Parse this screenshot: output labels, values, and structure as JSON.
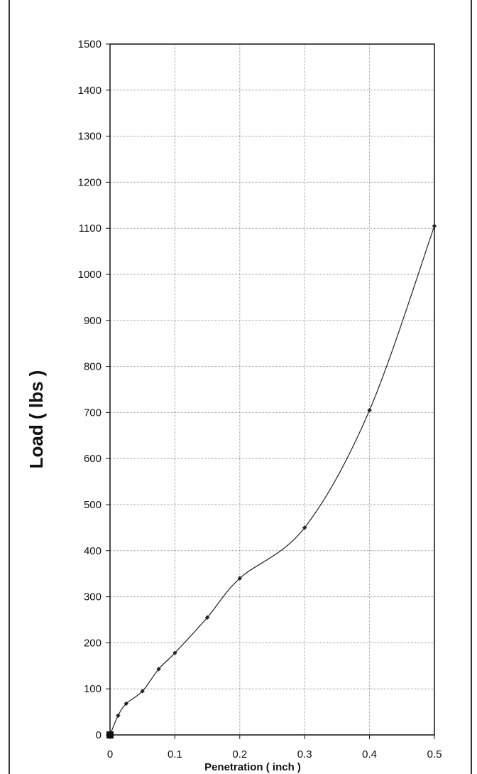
{
  "chart_data": {
    "type": "line",
    "xlabel": "Penetration ( inch )",
    "ylabel": "Load ( lbs )",
    "xlim": [
      0,
      0.5
    ],
    "ylim": [
      0,
      1500
    ],
    "x_ticks": [
      "0",
      "0.1",
      "0.2",
      "0.3",
      "0.4",
      "0.5"
    ],
    "y_ticks": [
      "0",
      "100",
      "200",
      "300",
      "400",
      "500",
      "600",
      "700",
      "800",
      "900",
      "1000",
      "1100",
      "1200",
      "1300",
      "1400",
      "1500"
    ],
    "grid": true,
    "series": [
      {
        "x": [
          0,
          0.0125,
          0.025,
          0.05,
          0.075,
          0.1,
          0.15,
          0.2,
          0.3,
          0.4,
          0.5
        ],
        "y": [
          0,
          42,
          68,
          95,
          143,
          178,
          255,
          340,
          450,
          705,
          1105
        ],
        "color": "#222222",
        "marker": "diamond"
      }
    ],
    "origin_marker": {
      "x": 0,
      "y": 0
    }
  }
}
